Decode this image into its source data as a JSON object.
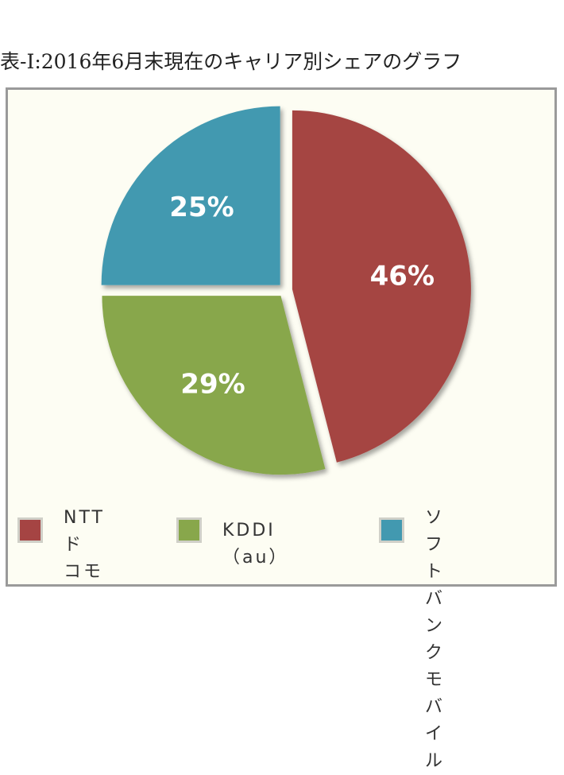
{
  "title": "表-Ⅰ:2016年6月末現在のキャリア別シェアのグラフ",
  "chart_data": {
    "type": "pie",
    "title": "表-Ⅰ:2016年6月末現在のキャリア別シェアのグラフ",
    "slices": [
      {
        "name": "NTTドコモ",
        "legend_lines": [
          "NTTド",
          "コモ"
        ],
        "value": 46,
        "label": "46%",
        "color": "#a54443"
      },
      {
        "name": "KDDI（au）",
        "legend_lines": [
          "KDDI（au）"
        ],
        "value": 29,
        "label": "29%",
        "color": "#88a74b"
      },
      {
        "name": "ソフトバンクモバイル",
        "legend_lines": [
          "ソフトバン",
          "クモバイル"
        ],
        "value": 25,
        "label": "25%",
        "color": "#4299b0"
      }
    ],
    "legend": "bottom",
    "start": "12 o'clock",
    "direction": "clockwise",
    "exploded": true
  }
}
